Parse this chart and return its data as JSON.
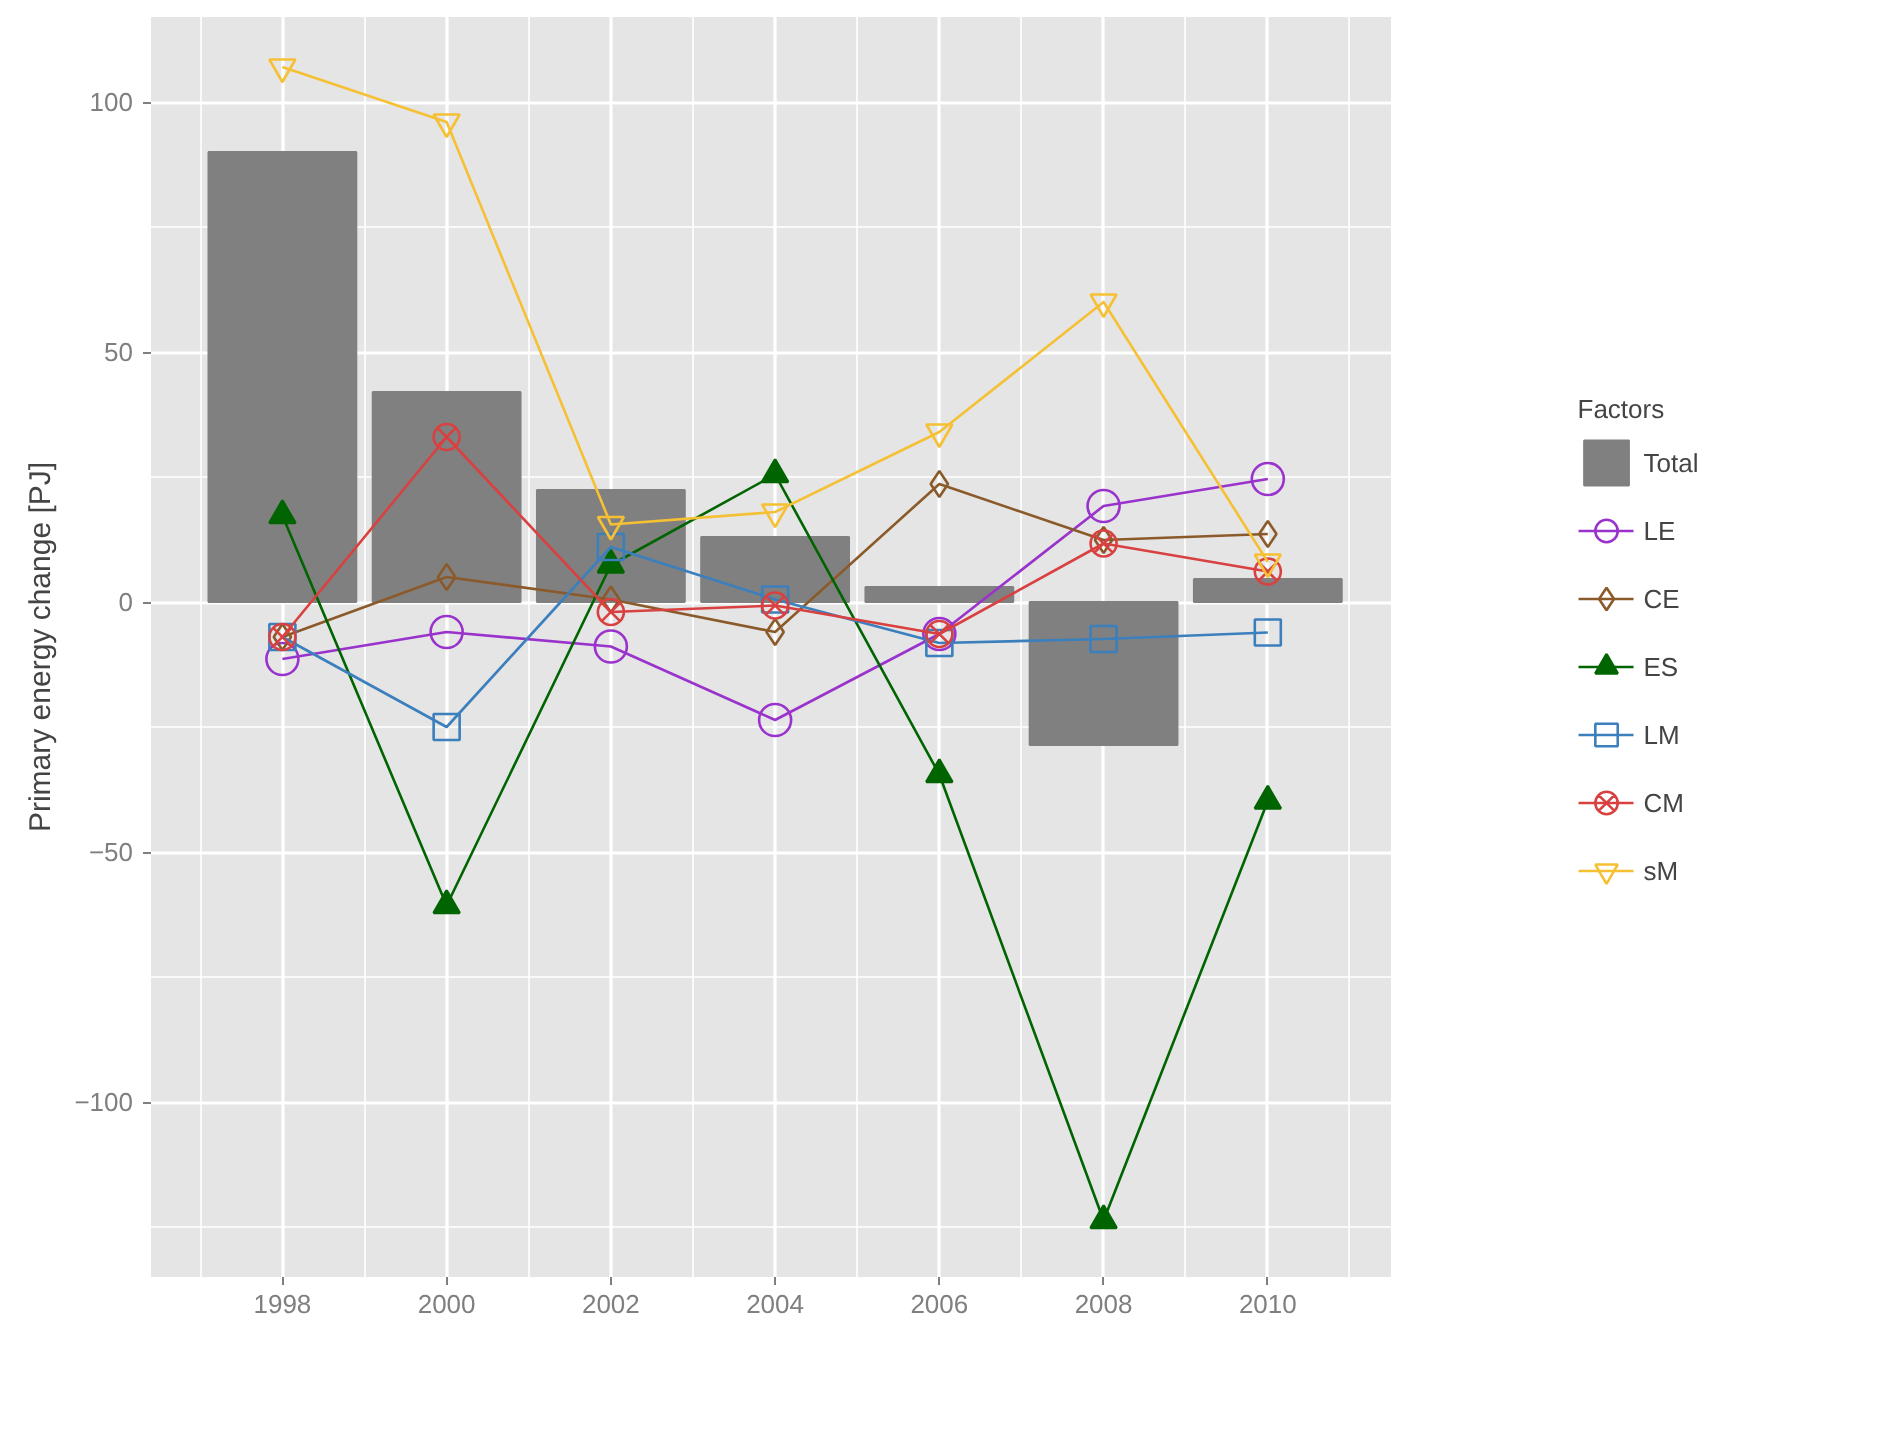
{
  "chart_data": {
    "type": "line",
    "ylabel": "Primary energy change [PJ]",
    "legend_title": "Factors",
    "x": [
      1998,
      2000,
      2002,
      2004,
      2006,
      2008,
      2010
    ],
    "xlim": [
      1996.4,
      2011.5
    ],
    "xticks": [
      1998,
      2000,
      2002,
      2004,
      2006,
      2008,
      2010
    ],
    "ylim": [
      -135,
      117
    ],
    "yticks": [
      -100,
      -50,
      0,
      50,
      100
    ],
    "grid": true,
    "legend": "right",
    "series": [
      {
        "name": "Total",
        "type": "bar",
        "color": "#808080",
        "values": [
          90,
          42,
          22.4,
          13,
          3,
          -28.6,
          4.6
        ]
      },
      {
        "name": "LE",
        "color": "#9933cc",
        "marker": "circle",
        "values": [
          -11.4,
          -6,
          -8.9,
          -23.6,
          -6.4,
          19.2,
          24.6
        ]
      },
      {
        "name": "CE",
        "color": "#8b5a2b",
        "marker": "diamond",
        "values": [
          -7,
          5,
          0.5,
          -6,
          23.6,
          12.4,
          13.6
        ]
      },
      {
        "name": "ES",
        "color": "#006400",
        "marker": "triangle",
        "values": [
          17.3,
          -60.7,
          7.4,
          25.5,
          -34.5,
          -123.7,
          -39.8
        ]
      },
      {
        "name": "LM",
        "color": "#3b7fbd",
        "marker": "square",
        "values": [
          -7,
          -25,
          11,
          0.5,
          -8.2,
          -7.4,
          -6.1
        ]
      },
      {
        "name": "CM",
        "color": "#d94040",
        "marker": "cross",
        "values": [
          -7,
          33,
          -2,
          -0.7,
          -6.4,
          11.7,
          6.1
        ]
      },
      {
        "name": "sM",
        "color": "#f5c033",
        "marker": "triangle_down",
        "values": [
          107,
          96,
          15.5,
          18,
          34,
          60,
          8
        ]
      }
    ]
  }
}
